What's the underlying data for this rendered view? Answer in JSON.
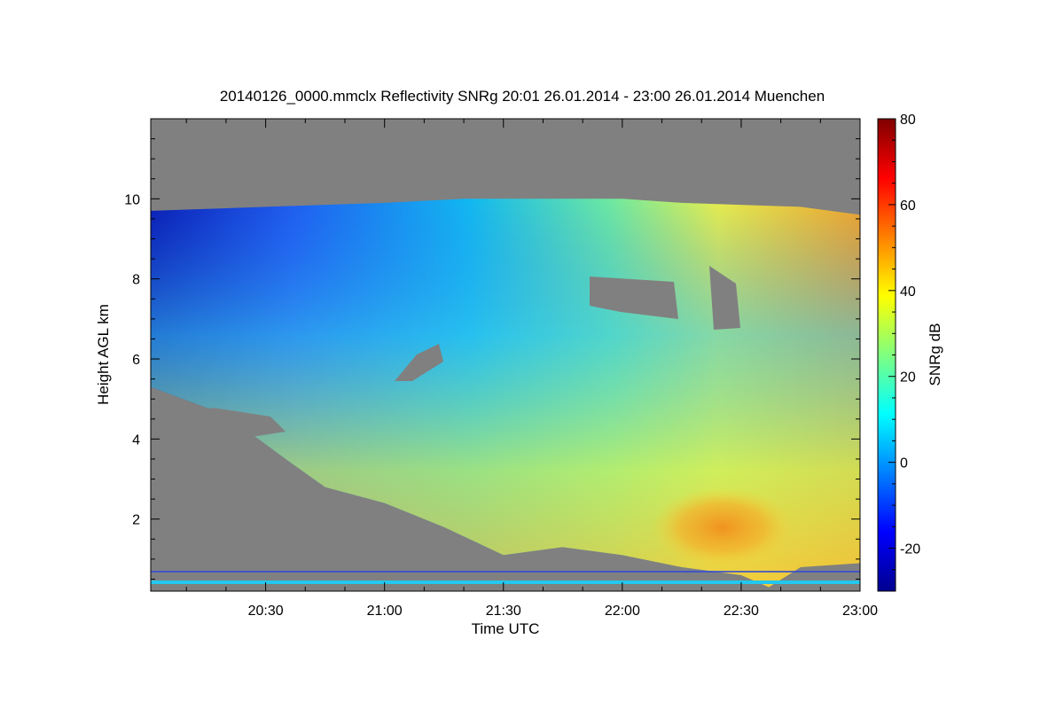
{
  "chart_data": {
    "type": "heatmap",
    "title": "20140126_0000.mmclx Reflectivity SNRg   20:01 26.01.2014 - 23:00 26.01.2014 Muenchen",
    "xlabel": "Time UTC",
    "ylabel": "Height AGL km",
    "colorbar_label": "SNRg dB",
    "x_range": [
      "20:01",
      "23:00"
    ],
    "x_ticks": [
      "20:30",
      "21:00",
      "21:30",
      "22:00",
      "22:30",
      "23:00"
    ],
    "y_range": [
      0.2,
      12.0
    ],
    "y_ticks": [
      "2",
      "4",
      "6",
      "8",
      "10"
    ],
    "colorbar_range": [
      -30,
      80
    ],
    "colorbar_ticks": [
      "-20",
      "0",
      "20",
      "40",
      "60",
      "80"
    ],
    "no_data_color": "#808080",
    "colormap": "jet",
    "echo_top_km": [
      {
        "t": "20:01",
        "h": 9.7
      },
      {
        "t": "20:30",
        "h": 9.8
      },
      {
        "t": "21:00",
        "h": 9.9
      },
      {
        "t": "21:20",
        "h": 10.0
      },
      {
        "t": "21:40",
        "h": 10.0
      },
      {
        "t": "22:00",
        "h": 10.0
      },
      {
        "t": "22:15",
        "h": 9.9
      },
      {
        "t": "22:45",
        "h": 9.8
      },
      {
        "t": "23:00",
        "h": 9.6
      }
    ],
    "echo_base_km": [
      {
        "t": "20:01",
        "h": 5.3
      },
      {
        "t": "20:20",
        "h": 4.6
      },
      {
        "t": "20:35",
        "h": 3.5
      },
      {
        "t": "20:45",
        "h": 2.8
      },
      {
        "t": "21:00",
        "h": 2.4
      },
      {
        "t": "21:15",
        "h": 1.8
      },
      {
        "t": "21:30",
        "h": 1.1
      },
      {
        "t": "21:45",
        "h": 1.3
      },
      {
        "t": "22:00",
        "h": 1.1
      },
      {
        "t": "22:15",
        "h": 0.8
      },
      {
        "t": "22:30",
        "h": 0.6
      },
      {
        "t": "22:37",
        "h": 0.3
      },
      {
        "t": "22:45",
        "h": 0.8
      },
      {
        "t": "23:00",
        "h": 0.9
      }
    ]
  }
}
